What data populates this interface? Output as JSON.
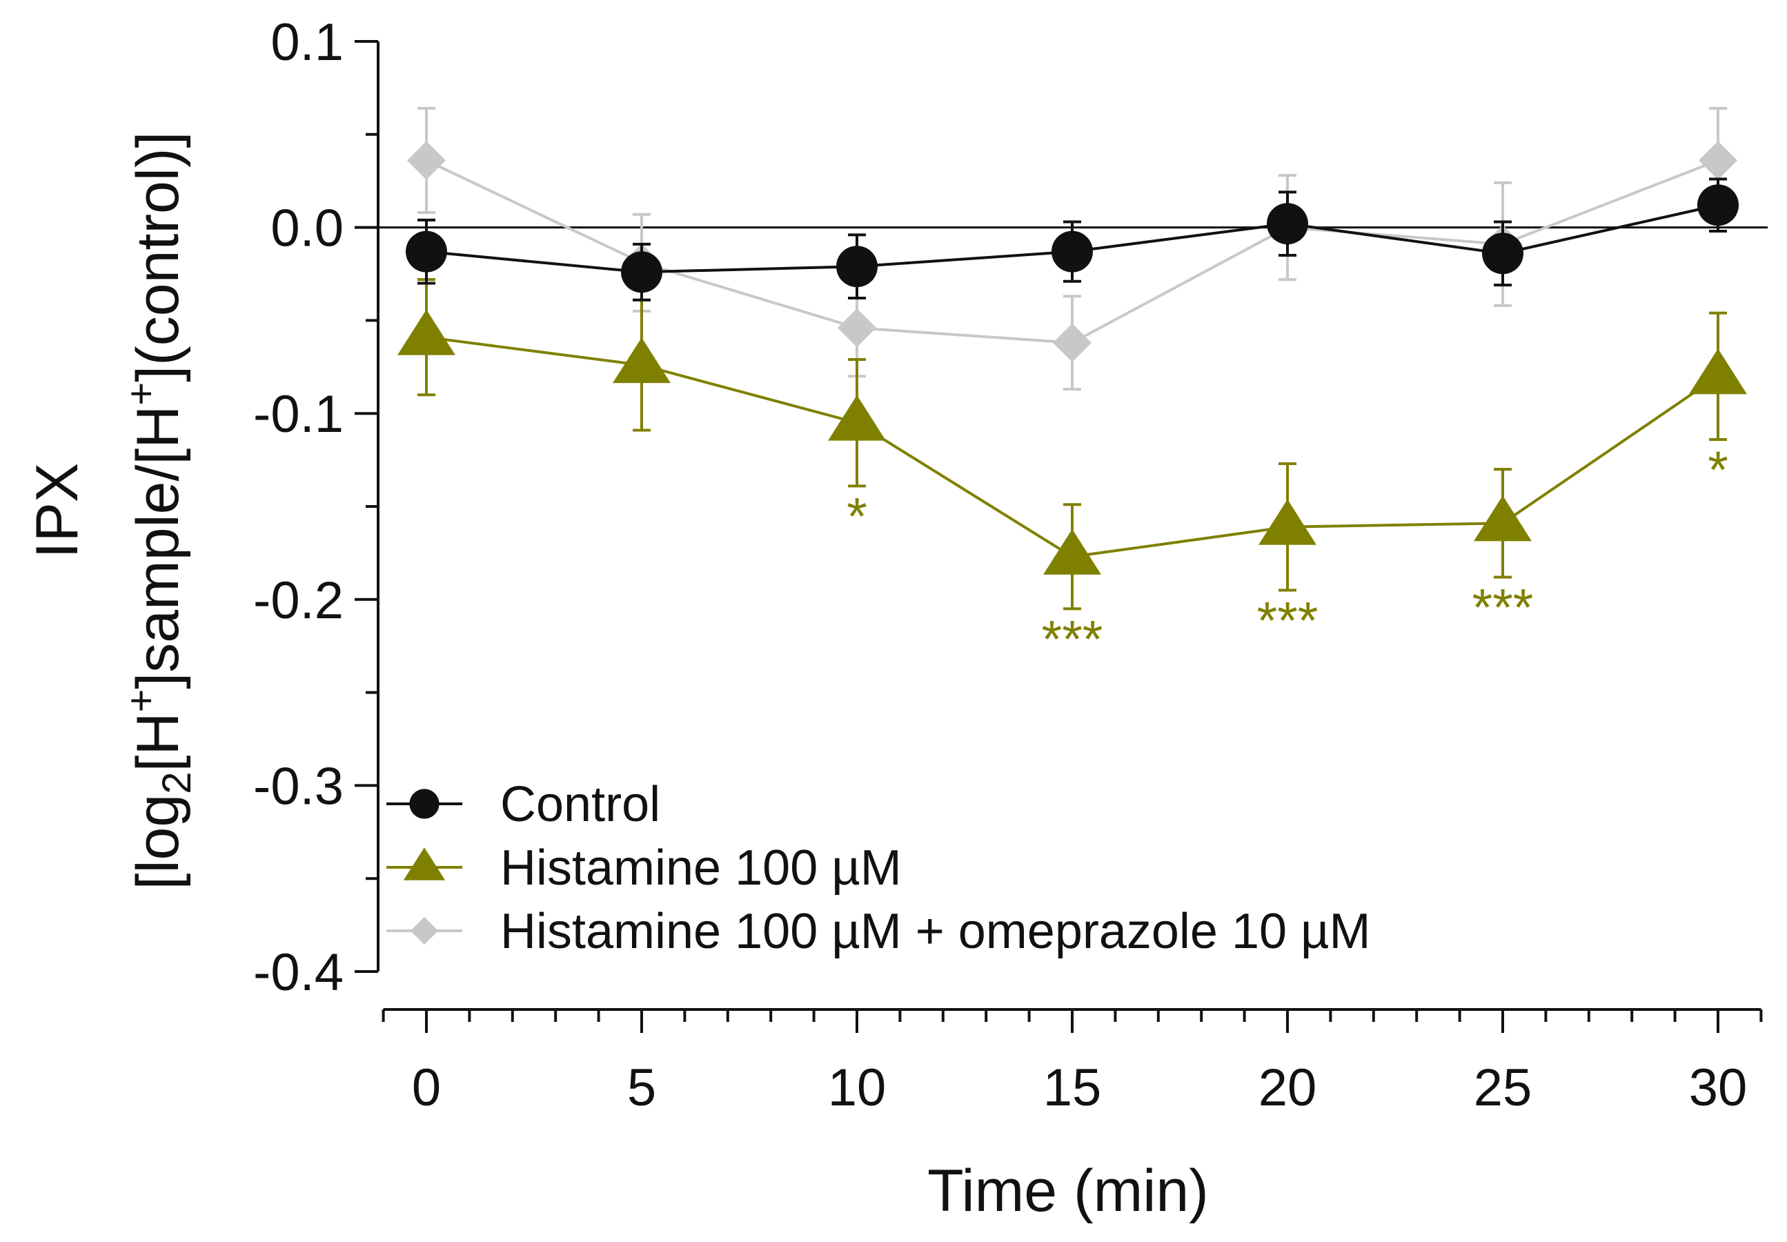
{
  "chart_data": {
    "type": "line",
    "xlabel": "Time (min)",
    "ylabel_line1": "IPX",
    "ylabel_line2_parts": [
      "[log",
      "2",
      "[H",
      "+",
      "]sample/[H",
      "+",
      "](control)]"
    ],
    "xlim": [
      -1,
      31
    ],
    "ylim": [
      -0.4,
      0.1
    ],
    "x_ticks": [
      0,
      5,
      10,
      15,
      20,
      25,
      30
    ],
    "x_tick_labels": [
      "0",
      "5",
      "10",
      "15",
      "20",
      "25",
      "30"
    ],
    "y_ticks": [
      0.1,
      0.0,
      -0.1,
      -0.2,
      -0.3,
      -0.4
    ],
    "y_tick_labels": [
      "0.1",
      "0.0",
      "-0.1",
      "-0.2",
      "-0.3",
      "-0.4"
    ],
    "reference_line_y": 0,
    "grid": false,
    "legend_position": "bottom-left",
    "series": [
      {
        "name": "Control",
        "color": "#111111",
        "marker": "circle",
        "x": [
          0,
          5,
          10,
          15,
          20,
          25,
          30
        ],
        "y": [
          -0.013,
          -0.024,
          -0.021,
          -0.013,
          0.002,
          -0.014,
          0.012
        ],
        "error": [
          0.017,
          0.015,
          0.017,
          0.016,
          0.017,
          0.017,
          0.014
        ]
      },
      {
        "name": "Histamine 100 µM",
        "color": "#808000",
        "marker": "triangle",
        "x": [
          0,
          5,
          10,
          15,
          20,
          25,
          30
        ],
        "y": [
          -0.059,
          -0.074,
          -0.105,
          -0.177,
          -0.161,
          -0.159,
          -0.08
        ],
        "error": [
          0.031,
          0.035,
          0.034,
          0.028,
          0.034,
          0.029,
          0.034
        ]
      },
      {
        "name": "Histamine 100 µM + omeprazole 10 µM",
        "color": "#c8c8c8",
        "marker": "diamond",
        "x": [
          0,
          5,
          10,
          15,
          20,
          25,
          30
        ],
        "y": [
          0.036,
          -0.019,
          -0.054,
          -0.062,
          0.0,
          -0.009,
          0.036
        ],
        "error": [
          0.028,
          0.026,
          0.026,
          0.025,
          0.028,
          0.033,
          0.028
        ]
      }
    ],
    "annotations": [
      {
        "x": 10,
        "label": "*"
      },
      {
        "x": 15,
        "label": "***"
      },
      {
        "x": 20,
        "label": "***"
      },
      {
        "x": 25,
        "label": "***"
      },
      {
        "x": 30,
        "label": "*"
      }
    ],
    "annotation_color": "#808000"
  }
}
